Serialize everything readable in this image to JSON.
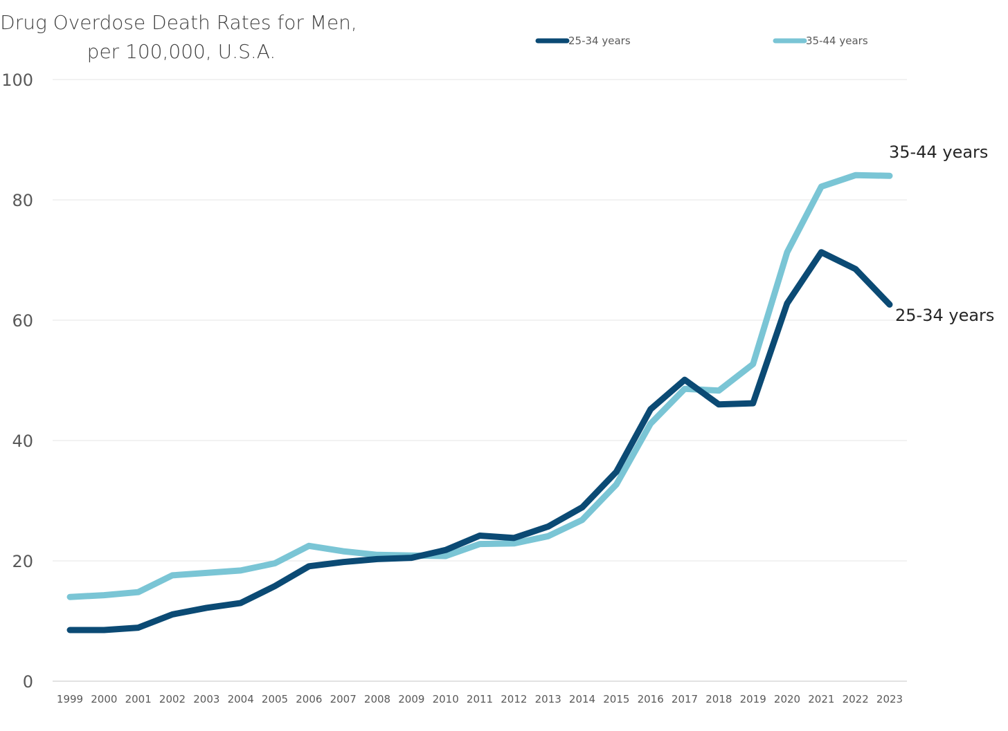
{
  "chart_data": {
    "type": "line",
    "title": [
      "Drug Overdose Death Rates for Men,",
      "per 100,000, U.S.A."
    ],
    "xlabel": "",
    "ylabel": "",
    "ylim": [
      0,
      100
    ],
    "yticks": [
      0,
      20,
      40,
      60,
      80,
      100
    ],
    "x": [
      "1999",
      "2000",
      "2001",
      "2002",
      "2003",
      "2004",
      "2005",
      "2006",
      "2007",
      "2008",
      "2009",
      "2010",
      "2011",
      "2012",
      "2013",
      "2014",
      "2015",
      "2016",
      "2017",
      "2018",
      "2019",
      "2020",
      "2021",
      "2022",
      "2023"
    ],
    "grid": true,
    "legend": "top",
    "series": [
      {
        "name": "25-34 years",
        "color": "#0b4a74",
        "values": [
          8.5,
          8.5,
          8.9,
          11.1,
          12.2,
          13.0,
          15.8,
          19.1,
          19.8,
          20.3,
          20.5,
          21.8,
          24.2,
          23.8,
          25.7,
          28.9,
          34.8,
          45.2,
          50.1,
          46.0,
          46.2,
          62.8,
          71.3,
          68.5,
          62.6
        ],
        "end_label": "25-34 years"
      },
      {
        "name": "35-44 years",
        "color": "#7ac5d5",
        "values": [
          14.0,
          14.3,
          14.8,
          17.6,
          18.0,
          18.4,
          19.6,
          22.5,
          21.6,
          21.0,
          20.9,
          20.8,
          22.8,
          22.9,
          24.1,
          26.8,
          32.7,
          42.8,
          48.6,
          48.3,
          52.7,
          71.3,
          82.2,
          84.1,
          84.0
        ],
        "end_label": "35-44 years"
      }
    ]
  }
}
